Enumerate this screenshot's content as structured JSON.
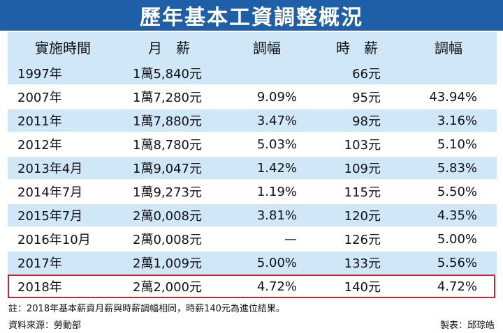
{
  "title": "歷年基本工資調整概況",
  "headers": {
    "time": "實施時間",
    "monthly": "月　薪",
    "monthly_rate": "調幅",
    "hourly": "時　薪",
    "hourly_rate": "調幅"
  },
  "rows": [
    {
      "time": "1997年",
      "monthly": "1萬5,840元",
      "monthly_rate": "",
      "hourly": "66元",
      "hourly_rate": ""
    },
    {
      "time": "2007年",
      "monthly": "1萬7,280元",
      "monthly_rate": "9.09%",
      "hourly": "95元",
      "hourly_rate": "43.94%"
    },
    {
      "time": "2011年",
      "monthly": "1萬7,880元",
      "monthly_rate": "3.47%",
      "hourly": "98元",
      "hourly_rate": "3.16%"
    },
    {
      "time": "2012年",
      "monthly": "1萬8,780元",
      "monthly_rate": "5.03%",
      "hourly": "103元",
      "hourly_rate": "5.10%"
    },
    {
      "time": "2013年4月",
      "monthly": "1萬9,047元",
      "monthly_rate": "1.42%",
      "hourly": "109元",
      "hourly_rate": "5.83%"
    },
    {
      "time": "2014年7月",
      "monthly": "1萬9,273元",
      "monthly_rate": "1.19%",
      "hourly": "115元",
      "hourly_rate": "5.50%"
    },
    {
      "time": "2015年7月",
      "monthly": "2萬0,008元",
      "monthly_rate": "3.81%",
      "hourly": "120元",
      "hourly_rate": "4.35%"
    },
    {
      "time": "2016年10月",
      "monthly": "2萬0,008元",
      "monthly_rate": "—",
      "hourly": "126元",
      "hourly_rate": "5.00%"
    },
    {
      "time": "2017年",
      "monthly": "2萬1,009元",
      "monthly_rate": "5.00%",
      "hourly": "133元",
      "hourly_rate": "5.56%"
    },
    {
      "time": "2018年",
      "monthly": "2萬2,000元",
      "monthly_rate": "4.72%",
      "hourly": "140元",
      "hourly_rate": "4.72%"
    }
  ],
  "note": "註：2018年基本薪資月薪與時薪調幅相同，時薪140元為進位結果。",
  "source": "資料來源：勞動部",
  "author": "製表：邱琮皓",
  "colors": {
    "title_bg": "#1f5fa8",
    "stripe": "#cfe7f7",
    "highlight_border": "#c4263a"
  }
}
